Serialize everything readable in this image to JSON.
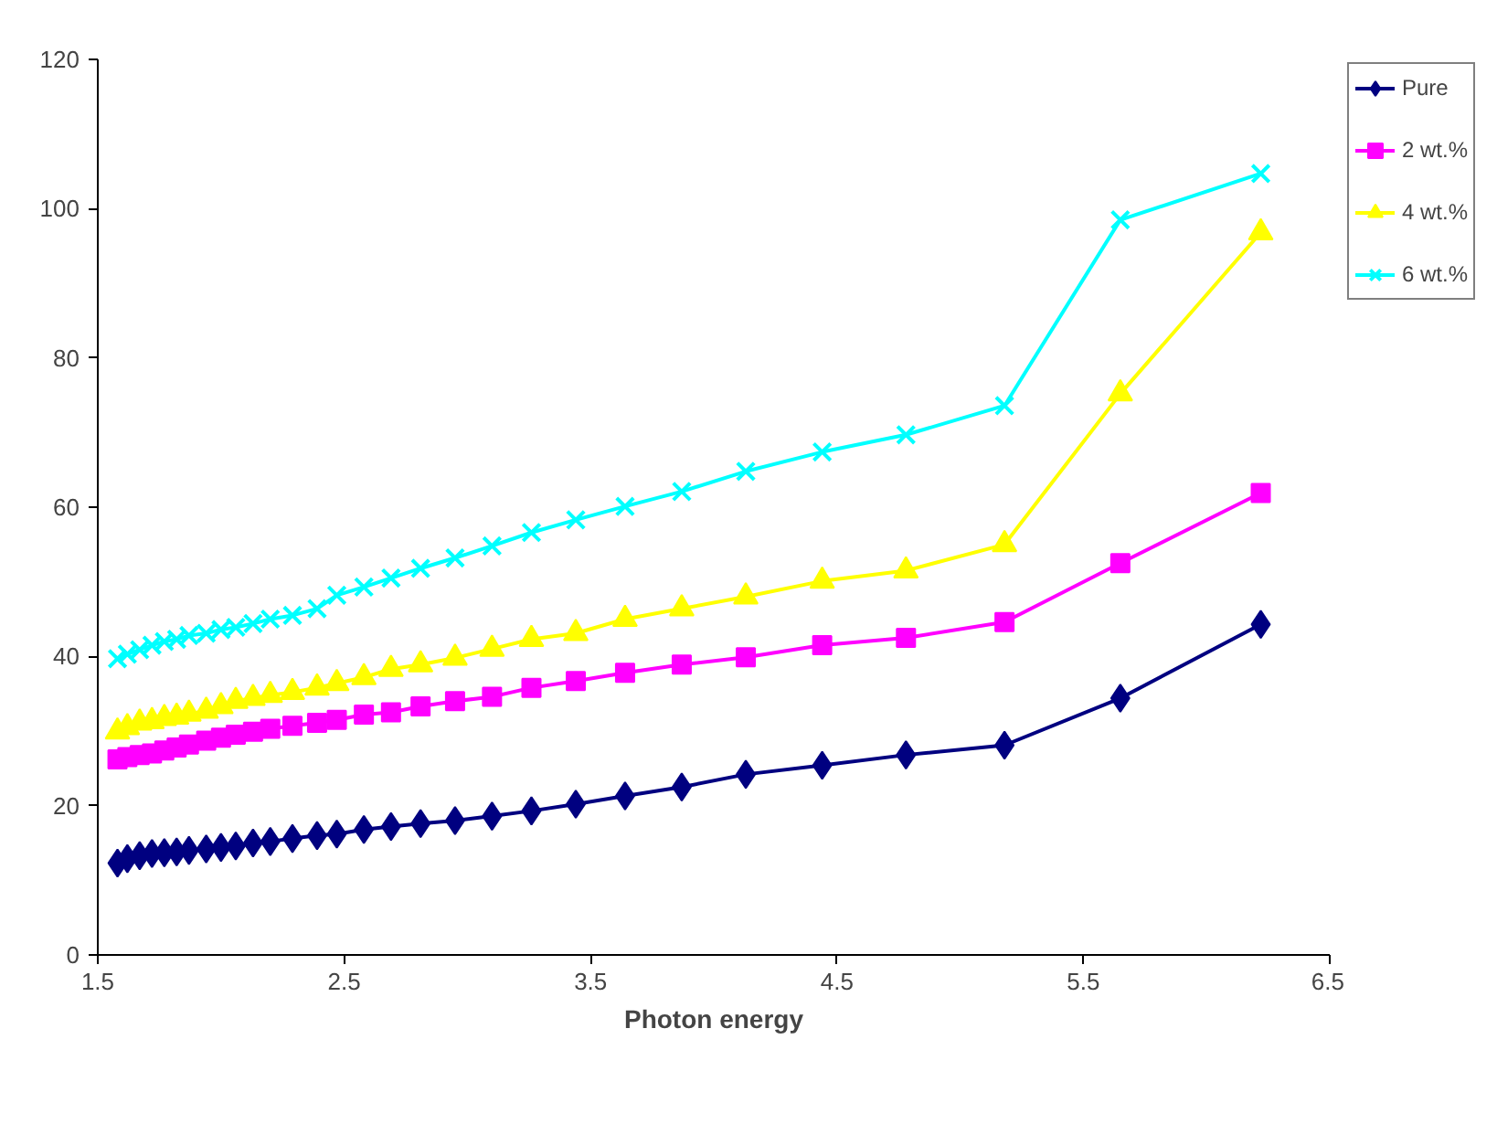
{
  "chart_data": {
    "type": "line",
    "xlabel": "Photon energy",
    "xlim": [
      1.5,
      6.5
    ],
    "xticks": [
      1.5,
      2.5,
      3.5,
      4.5,
      5.5,
      6.5
    ],
    "ylim": [
      0,
      120
    ],
    "yticks": [
      0,
      20,
      40,
      60,
      80,
      100,
      120
    ],
    "grid": false,
    "legend": "top right",
    "line_style": "solid",
    "x": [
      1.58,
      1.62,
      1.67,
      1.72,
      1.77,
      1.82,
      1.87,
      1.94,
      2.0,
      2.06,
      2.13,
      2.2,
      2.29,
      2.39,
      2.47,
      2.58,
      2.69,
      2.81,
      2.95,
      3.1,
      3.26,
      3.44,
      3.64,
      3.87,
      4.13,
      4.44,
      4.78,
      5.18,
      5.65,
      6.22
    ],
    "series": [
      {
        "name": "Pure",
        "color": "#000080",
        "marker": "diamond",
        "values": [
          12.3,
          12.9,
          13.3,
          13.6,
          13.7,
          13.8,
          14.0,
          14.2,
          14.4,
          14.6,
          15.0,
          15.2,
          15.6,
          16.0,
          16.2,
          16.8,
          17.2,
          17.6,
          18.0,
          18.6,
          19.3,
          20.2,
          21.3,
          22.5,
          24.2,
          25.4,
          26.8,
          28.1,
          34.4,
          44.3
        ]
      },
      {
        "name": "2 wt.%",
        "color": "#ff00ff",
        "marker": "square",
        "values": [
          26.2,
          26.5,
          26.8,
          27.0,
          27.4,
          27.8,
          28.2,
          28.7,
          29.1,
          29.5,
          29.9,
          30.3,
          30.7,
          31.1,
          31.5,
          32.2,
          32.5,
          33.3,
          34.0,
          34.6,
          35.8,
          36.7,
          37.8,
          38.9,
          39.9,
          41.5,
          42.5,
          44.6,
          52.5,
          61.9
        ]
      },
      {
        "name": "4 wt.%",
        "color": "#ffff00",
        "marker": "triangle",
        "values": [
          29.9,
          30.5,
          31.1,
          31.3,
          31.7,
          31.9,
          32.3,
          32.7,
          33.3,
          34.0,
          34.4,
          34.8,
          35.2,
          35.8,
          36.4,
          37.2,
          38.3,
          38.9,
          39.8,
          41.0,
          42.3,
          43.1,
          45.0,
          46.4,
          48.0,
          50.1,
          51.5,
          55.0,
          75.2,
          96.8
        ]
      },
      {
        "name": "6 wt.%",
        "color": "#00ffff",
        "marker": "cross",
        "values": [
          39.7,
          40.3,
          40.9,
          41.5,
          42.0,
          42.3,
          42.8,
          43.1,
          43.6,
          43.9,
          44.4,
          45.0,
          45.5,
          46.4,
          48.2,
          49.3,
          50.5,
          51.8,
          53.2,
          54.8,
          56.6,
          58.3,
          60.1,
          62.1,
          64.8,
          67.4,
          69.7,
          73.6,
          98.5,
          104.7
        ]
      }
    ]
  }
}
